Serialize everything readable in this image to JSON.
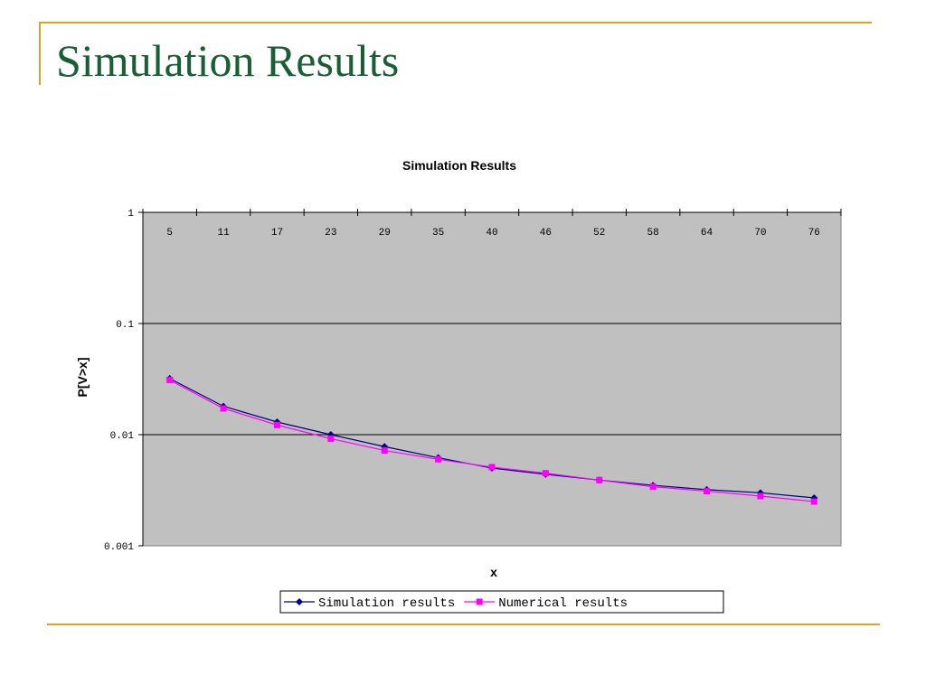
{
  "slide": {
    "title": "Simulation Results"
  },
  "chart_data": {
    "type": "line",
    "title": "Simulation Results",
    "xlabel": "x",
    "ylabel": "P[V>x]",
    "y_scale": "log",
    "ylim": [
      0.001,
      1
    ],
    "y_ticks": [
      "1",
      "0.1",
      "0.01",
      "0.001"
    ],
    "x_axis_position": "top",
    "grid": true,
    "legend_placement": "bottom",
    "categories": [
      "5",
      "11",
      "17",
      "23",
      "29",
      "35",
      "40",
      "46",
      "52",
      "58",
      "64",
      "70",
      "76"
    ],
    "series": [
      {
        "name": "Simulation results",
        "color": "#000080",
        "marker": "diamond",
        "values": [
          0.032,
          0.018,
          0.013,
          0.01,
          0.0078,
          0.0062,
          0.005,
          0.0044,
          0.0039,
          0.0035,
          0.0032,
          0.003,
          0.0027
        ]
      },
      {
        "name": "Numerical results",
        "color": "#ff00ff",
        "marker": "square",
        "values": [
          0.031,
          0.0172,
          0.0122,
          0.0092,
          0.0072,
          0.006,
          0.0051,
          0.0045,
          0.0039,
          0.0034,
          0.0031,
          0.0028,
          0.0025
        ]
      }
    ],
    "colors": {
      "plot_background": "#c0c0c0",
      "gridline": "#000000"
    }
  }
}
